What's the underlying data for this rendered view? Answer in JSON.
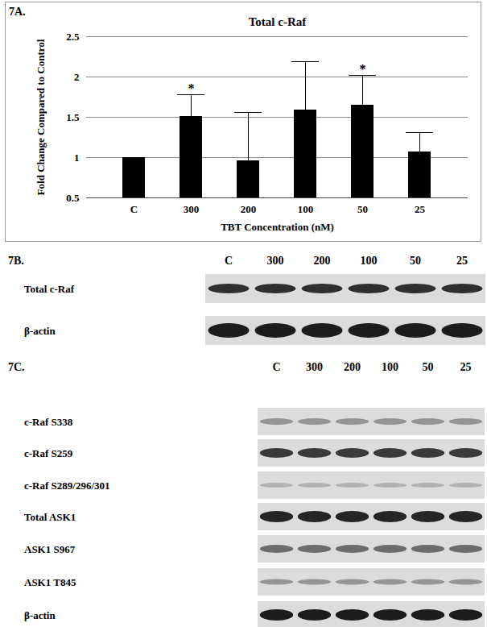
{
  "chart_data": {
    "type": "bar",
    "title": "Total c-Raf",
    "x_label": "TBT Concentration (nM)",
    "y_label": "Fold Change Compared to Control",
    "categories": [
      "C",
      "300",
      "200",
      "100",
      "50",
      "25"
    ],
    "values": [
      1,
      1.51,
      0.96,
      1.59,
      1.65,
      1.07
    ],
    "errors": [
      0,
      0.27,
      0.6,
      0.6,
      0.37,
      0.24
    ],
    "annotations": [
      {
        "category": "300",
        "text": "*"
      },
      {
        "category": "50",
        "text": "*"
      }
    ],
    "color": "#000000",
    "ylim": [
      0.5,
      2.5
    ],
    "yticks": [
      0.5,
      1,
      1.5,
      2,
      2.5
    ],
    "grid": true
  },
  "panel_label": "7A.",
  "blots": [
    {
      "label": "7B.",
      "lanes": [
        "C",
        "300",
        "200",
        "100",
        "50",
        "25"
      ],
      "rows": [
        "Total c-Raf",
        "β-actin"
      ]
    },
    {
      "label": "7C.",
      "lanes": [
        "C",
        "300",
        "200",
        "100",
        "50",
        "25"
      ],
      "rows": [
        "c-Raf S338",
        "c-Raf S259",
        "c-Raf S289/296/301",
        "Total ASK1",
        "ASK1 S967",
        "ASK1 T845",
        "β-actin"
      ]
    }
  ]
}
